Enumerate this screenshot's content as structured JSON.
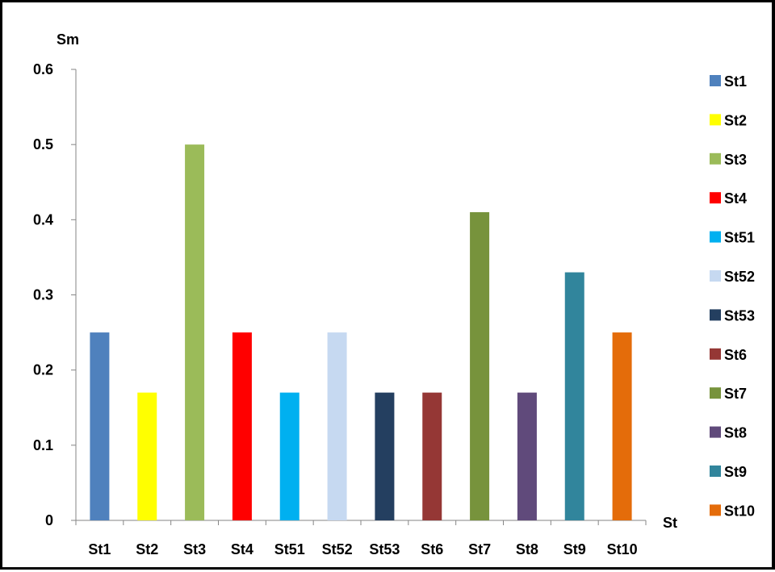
{
  "chart_data": {
    "type": "bar",
    "categories": [
      "St1",
      "St2",
      "St3",
      "St4",
      "St51",
      "St52",
      "St53",
      "St6",
      "St7",
      "St8",
      "St9",
      "St10"
    ],
    "values": [
      0.25,
      0.17,
      0.5,
      0.25,
      0.17,
      0.25,
      0.17,
      0.17,
      0.41,
      0.17,
      0.33,
      0.25
    ],
    "colors": [
      "#4F81BD",
      "#FFFF00",
      "#9BBB59",
      "#FF0000",
      "#00B0F0",
      "#C6D9F1",
      "#243F60",
      "#953735",
      "#77933C",
      "#604A7B",
      "#31859C",
      "#E46C0A"
    ],
    "title": "",
    "xlabel": "St",
    "ylabel": "Sm",
    "ylim": [
      0,
      0.6
    ],
    "yticks": [
      "0",
      "0.1",
      "0.2",
      "0.3",
      "0.4",
      "0.5",
      "0.6"
    ],
    "legend": [
      "St1",
      "St2",
      "St3",
      "St4",
      "St51",
      "St52",
      "St53",
      "St6",
      "St7",
      "St8",
      "St9",
      "St10"
    ],
    "legend_position": "right",
    "grid": false
  }
}
